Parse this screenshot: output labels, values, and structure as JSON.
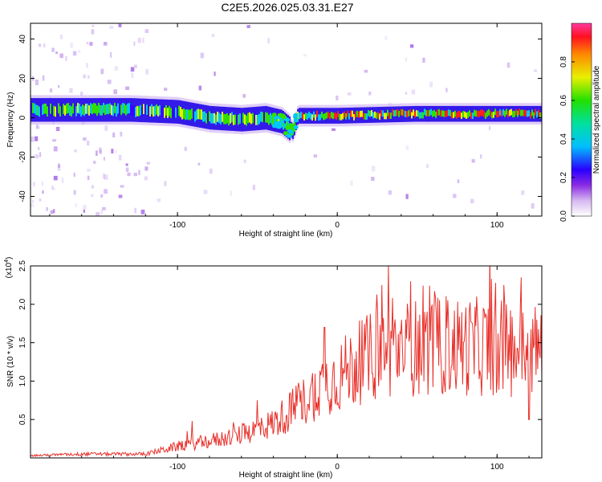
{
  "title": "C2E5.2026.025.03.31.E27",
  "chart_data": [
    {
      "type": "heatmap",
      "name": "spectrogram",
      "title": "C2E5.2026.025.03.31.E27",
      "xlabel": "Height of straight line (km)",
      "ylabel": "Frequency (Hz)",
      "xlim": [
        -192,
        128
      ],
      "ylim": [
        -50,
        48
      ],
      "xticks": [
        -100,
        0,
        100
      ],
      "yticks": [
        -40,
        -20,
        0,
        20,
        40
      ],
      "xtick_labels": [
        "-100",
        "0",
        "100"
      ],
      "ytick_labels": [
        "-40",
        "-20",
        "0",
        "20",
        "40"
      ],
      "colorbar": {
        "label": "Normalized spectral amplitude",
        "range": [
          0.0,
          1.0
        ],
        "ticks": [
          0.0,
          0.2,
          0.4,
          0.6,
          0.8
        ],
        "tick_labels": [
          "0.0",
          "0.2",
          "0.4",
          "0.6",
          "0.8"
        ]
      },
      "band_center": [
        {
          "x": -190,
          "f": 4
        },
        {
          "x": -160,
          "f": 4
        },
        {
          "x": -130,
          "f": 4
        },
        {
          "x": -100,
          "f": 3
        },
        {
          "x": -80,
          "f": 0
        },
        {
          "x": -60,
          "f": -1
        },
        {
          "x": -45,
          "f": 0
        },
        {
          "x": -35,
          "f": -2
        },
        {
          "x": -28,
          "f": -7
        },
        {
          "x": -25,
          "f": 1
        },
        {
          "x": 0,
          "f": 1
        },
        {
          "x": 50,
          "f": 2
        },
        {
          "x": 100,
          "f": 2
        },
        {
          "x": 128,
          "f": 2
        }
      ]
    },
    {
      "type": "line",
      "name": "snr",
      "xlabel": "Height of straight line (km)",
      "ylabel": "SNR (10 * v/v)",
      "multiplier_label": "(x10",
      "multiplier_exp": "4",
      "xlim": [
        -192,
        128
      ],
      "ylim": [
        0,
        2.5
      ],
      "xticks": [
        -100,
        0,
        100
      ],
      "yticks": [
        0.5,
        1.0,
        1.5,
        2.0,
        2.5
      ],
      "xtick_labels": [
        "-100",
        "0",
        "100"
      ],
      "ytick_labels": [
        "0.5",
        "1.0",
        "1.5",
        "2.0",
        "2.5"
      ],
      "color": "#e8302a",
      "envelope": [
        {
          "x": -192,
          "v": 0.03
        },
        {
          "x": -160,
          "v": 0.05
        },
        {
          "x": -120,
          "v": 0.05
        },
        {
          "x": -100,
          "v": 0.15
        },
        {
          "x": -80,
          "v": 0.22
        },
        {
          "x": -60,
          "v": 0.3
        },
        {
          "x": -40,
          "v": 0.45
        },
        {
          "x": -30,
          "v": 0.6
        },
        {
          "x": -20,
          "v": 0.75
        },
        {
          "x": -10,
          "v": 0.95
        },
        {
          "x": 0,
          "v": 1.05
        },
        {
          "x": 15,
          "v": 1.25
        },
        {
          "x": 30,
          "v": 1.4
        },
        {
          "x": 60,
          "v": 1.45
        },
        {
          "x": 90,
          "v": 1.45
        },
        {
          "x": 128,
          "v": 1.4
        }
      ],
      "peaks": [
        {
          "x": 32,
          "v": 2.5
        },
        {
          "x": 28,
          "v": 2.25
        },
        {
          "x": 46,
          "v": 2.3
        },
        {
          "x": 115,
          "v": 2.35
        },
        {
          "x": -91,
          "v": 0.48
        },
        {
          "x": -50,
          "v": 0.75
        },
        {
          "x": -8,
          "v": 1.7
        },
        {
          "x": 120,
          "v": 0.5
        }
      ]
    }
  ]
}
